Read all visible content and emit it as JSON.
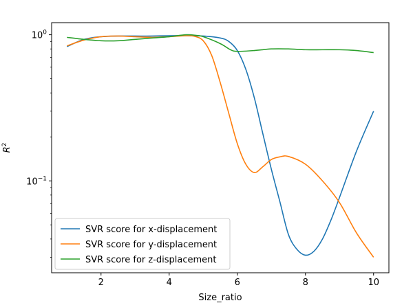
{
  "chart_data": {
    "type": "line",
    "title": "",
    "xlabel": "Size_ratio",
    "ylabel": "R2",
    "ylabel_base": "R",
    "ylabel_sup": "2",
    "yscale": "log",
    "xlim": [
      0.55,
      10.45
    ],
    "ylim": [
      0.0235,
      1.21
    ],
    "x_ticks": [
      2,
      4,
      6,
      8,
      10
    ],
    "x_tick_labels": [
      "2",
      "4",
      "6",
      "8",
      "10"
    ],
    "y_ticks": [
      0.1,
      1
    ],
    "y_tick_labels": [
      {
        "base": "10",
        "sup": "−1"
      },
      {
        "base": "10",
        "sup": "0"
      }
    ],
    "grid": false,
    "legend_position": "lower-left",
    "series": [
      {
        "name": "SVR score for x-displacement",
        "color": "#1f77b4",
        "x": [
          1.0,
          1.5,
          2.0,
          2.5,
          3.0,
          3.5,
          4.0,
          4.5,
          5.0,
          5.5,
          5.75,
          6.0,
          6.25,
          6.5,
          6.75,
          7.0,
          7.25,
          7.5,
          7.75,
          8.0,
          8.25,
          8.5,
          8.75,
          9.0,
          9.5,
          10.0
        ],
        "y": [
          0.83,
          0.93,
          0.97,
          0.98,
          0.98,
          0.98,
          0.985,
          0.985,
          0.98,
          0.95,
          0.9,
          0.78,
          0.58,
          0.37,
          0.21,
          0.12,
          0.072,
          0.043,
          0.034,
          0.031,
          0.033,
          0.04,
          0.054,
          0.077,
          0.16,
          0.3
        ]
      },
      {
        "name": "SVR score for y-displacement",
        "color": "#ff7f0e",
        "x": [
          1.0,
          1.5,
          2.0,
          2.5,
          3.0,
          3.5,
          4.0,
          4.5,
          4.75,
          5.0,
          5.25,
          5.5,
          5.75,
          6.0,
          6.25,
          6.5,
          6.75,
          7.0,
          7.25,
          7.5,
          8.0,
          8.5,
          9.0,
          9.5,
          10.0
        ],
        "y": [
          0.84,
          0.92,
          0.97,
          0.98,
          0.97,
          0.96,
          0.97,
          0.985,
          0.975,
          0.91,
          0.72,
          0.47,
          0.29,
          0.18,
          0.13,
          0.114,
          0.125,
          0.14,
          0.146,
          0.147,
          0.13,
          0.1,
          0.071,
          0.044,
          0.03
        ]
      },
      {
        "name": "SVR score for z-displacement",
        "color": "#2ca02c",
        "x": [
          1.0,
          1.5,
          2.0,
          2.5,
          3.0,
          3.5,
          4.0,
          4.5,
          4.8,
          5.0,
          5.5,
          5.8,
          6.0,
          6.5,
          7.0,
          7.5,
          8.0,
          8.5,
          9.0,
          9.5,
          10.0
        ],
        "y": [
          0.96,
          0.93,
          0.91,
          0.91,
          0.93,
          0.95,
          0.97,
          1.0,
          0.99,
          0.97,
          0.87,
          0.79,
          0.77,
          0.78,
          0.8,
          0.8,
          0.79,
          0.79,
          0.79,
          0.78,
          0.755
        ]
      }
    ]
  }
}
